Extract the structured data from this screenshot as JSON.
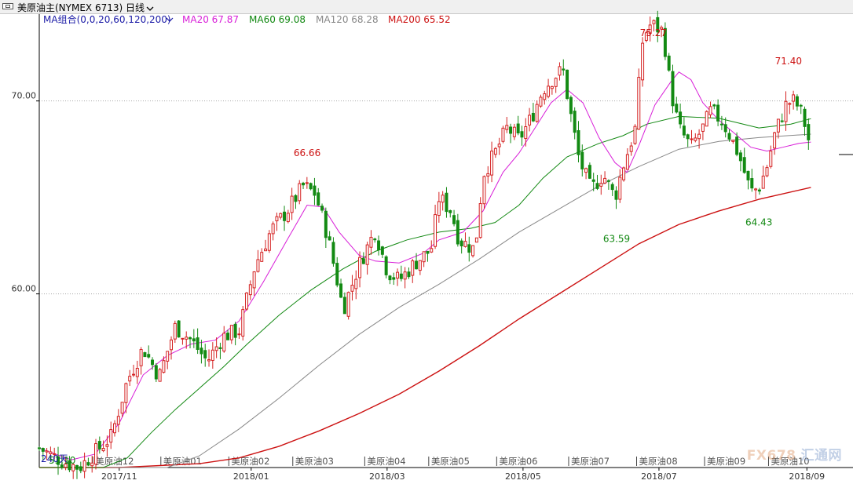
{
  "window": {
    "title": "美原油主(NYMEX 6713)",
    "period": "日线",
    "period_chevron": "chevron-down-icon",
    "title_icon": "window-icon"
  },
  "legend": {
    "ma_group": "MA组合(0,0,20,60,120,200)",
    "items": [
      {
        "label": "MA20 67.87",
        "color": "#d81ed8"
      },
      {
        "label": "MA60 69.08",
        "color": "#118811"
      },
      {
        "label": "MA120 68.28",
        "color": "#888888"
      },
      {
        "label": "MA200 65.52",
        "color": "#cc1111"
      }
    ]
  },
  "watermark": {
    "text": "FX678",
    "cn": "汇通网"
  },
  "chart_data": {
    "type": "line",
    "kind": "candlestick",
    "ylim": [
      51.0,
      74.5
    ],
    "yticks": [
      60.0,
      70.0
    ],
    "ytick_labels": [
      "60.00",
      "70.00"
    ],
    "grid": "dotted-horizontal",
    "x_labels": [
      "2017/11",
      "2018/01",
      "2018/03",
      "2018/05",
      "2018/07",
      "2018/09"
    ],
    "x_label_pos": [
      0.1,
      0.265,
      0.435,
      0.605,
      0.775,
      0.96
    ],
    "contract_marks": [
      "美原油12",
      "美原油01",
      "美原油02",
      "美原油03",
      "美原油04",
      "美原油05",
      "美原油06",
      "美原油07",
      "美原油08",
      "美原油09",
      "美原油10"
    ],
    "contract_pos": [
      0.07,
      0.155,
      0.24,
      0.32,
      0.41,
      0.49,
      0.575,
      0.665,
      0.75,
      0.835,
      0.915
    ],
    "overlay_labels": [
      "240天",
      "53.10"
    ],
    "annotations": [
      {
        "text": "66.66",
        "x": 0.335,
        "y": 66.66,
        "color": "#cc1111",
        "pos": "above"
      },
      {
        "text": "75.27",
        "x": 0.768,
        "y": 75.27,
        "color": "#cc1111",
        "pos": "above"
      },
      {
        "text": "71.40",
        "x": 0.937,
        "y": 71.4,
        "color": "#cc1111",
        "pos": "above"
      },
      {
        "text": "63.59",
        "x": 0.722,
        "y": 63.59,
        "color": "#118811",
        "pos": "below"
      },
      {
        "text": "64.43",
        "x": 0.9,
        "y": 64.43,
        "color": "#118811",
        "pos": "below"
      }
    ],
    "close_anchors": [
      [
        0.0,
        52.0
      ],
      [
        0.03,
        51.3
      ],
      [
        0.05,
        51.0
      ],
      [
        0.07,
        51.8
      ],
      [
        0.09,
        52.6
      ],
      [
        0.11,
        55.5
      ],
      [
        0.13,
        57.2
      ],
      [
        0.15,
        55.7
      ],
      [
        0.17,
        58.3
      ],
      [
        0.19,
        57.6
      ],
      [
        0.21,
        56.5
      ],
      [
        0.23,
        57.8
      ],
      [
        0.25,
        58.1
      ],
      [
        0.27,
        61.5
      ],
      [
        0.29,
        63.3
      ],
      [
        0.31,
        64.3
      ],
      [
        0.33,
        65.6
      ],
      [
        0.345,
        65.2
      ],
      [
        0.36,
        63.1
      ],
      [
        0.37,
        61.2
      ],
      [
        0.38,
        59.2
      ],
      [
        0.4,
        61.5
      ],
      [
        0.42,
        63.3
      ],
      [
        0.435,
        61.2
      ],
      [
        0.45,
        60.7
      ],
      [
        0.47,
        61.6
      ],
      [
        0.49,
        62.3
      ],
      [
        0.5,
        65.0
      ],
      [
        0.515,
        64.3
      ],
      [
        0.525,
        62.8
      ],
      [
        0.545,
        62.3
      ],
      [
        0.555,
        66.2
      ],
      [
        0.57,
        67.3
      ],
      [
        0.585,
        68.6
      ],
      [
        0.6,
        68.0
      ],
      [
        0.615,
        69.1
      ],
      [
        0.63,
        70.6
      ],
      [
        0.645,
        71.3
      ],
      [
        0.655,
        71.6
      ],
      [
        0.665,
        69.2
      ],
      [
        0.675,
        67.0
      ],
      [
        0.69,
        65.4
      ],
      [
        0.705,
        66.2
      ],
      [
        0.72,
        65.0
      ],
      [
        0.73,
        66.6
      ],
      [
        0.745,
        68.5
      ],
      [
        0.755,
        73.3
      ],
      [
        0.765,
        74.0
      ],
      [
        0.78,
        73.6
      ],
      [
        0.79,
        70.5
      ],
      [
        0.8,
        68.6
      ],
      [
        0.815,
        67.6
      ],
      [
        0.83,
        68.6
      ],
      [
        0.84,
        69.5
      ],
      [
        0.855,
        68.9
      ],
      [
        0.865,
        68.1
      ],
      [
        0.875,
        67.2
      ],
      [
        0.885,
        65.9
      ],
      [
        0.89,
        65.3
      ],
      [
        0.9,
        65.5
      ],
      [
        0.91,
        66.6
      ],
      [
        0.92,
        68.3
      ],
      [
        0.935,
        69.9
      ],
      [
        0.945,
        70.0
      ],
      [
        0.955,
        69.2
      ],
      [
        0.962,
        68.0
      ]
    ],
    "ma20": [
      [
        0.0,
        52.0
      ],
      [
        0.04,
        51.4
      ],
      [
        0.07,
        51.7
      ],
      [
        0.1,
        53.3
      ],
      [
        0.13,
        55.8
      ],
      [
        0.16,
        56.8
      ],
      [
        0.19,
        57.4
      ],
      [
        0.22,
        57.6
      ],
      [
        0.25,
        58.6
      ],
      [
        0.28,
        60.6
      ],
      [
        0.31,
        62.8
      ],
      [
        0.335,
        64.6
      ],
      [
        0.355,
        64.5
      ],
      [
        0.375,
        63.2
      ],
      [
        0.4,
        62.0
      ],
      [
        0.42,
        61.7
      ],
      [
        0.45,
        61.6
      ],
      [
        0.48,
        62.1
      ],
      [
        0.5,
        62.8
      ],
      [
        0.53,
        63.2
      ],
      [
        0.555,
        64.3
      ],
      [
        0.58,
        66.3
      ],
      [
        0.6,
        67.3
      ],
      [
        0.62,
        68.6
      ],
      [
        0.64,
        69.9
      ],
      [
        0.66,
        70.6
      ],
      [
        0.68,
        69.9
      ],
      [
        0.7,
        68.1
      ],
      [
        0.72,
        66.8
      ],
      [
        0.735,
        66.3
      ],
      [
        0.75,
        67.7
      ],
      [
        0.77,
        69.8
      ],
      [
        0.79,
        71.0
      ],
      [
        0.8,
        71.5
      ],
      [
        0.815,
        71.1
      ],
      [
        0.83,
        69.9
      ],
      [
        0.85,
        69.0
      ],
      [
        0.87,
        68.3
      ],
      [
        0.89,
        67.6
      ],
      [
        0.91,
        67.4
      ],
      [
        0.93,
        67.6
      ],
      [
        0.95,
        67.8
      ],
      [
        0.965,
        67.87
      ]
    ],
    "ma60": [
      [
        0.0,
        51.0
      ],
      [
        0.05,
        51.0
      ],
      [
        0.08,
        51.0
      ],
      [
        0.11,
        51.5
      ],
      [
        0.14,
        52.8
      ],
      [
        0.17,
        54.0
      ],
      [
        0.2,
        55.1
      ],
      [
        0.23,
        56.2
      ],
      [
        0.26,
        57.4
      ],
      [
        0.3,
        58.9
      ],
      [
        0.34,
        60.2
      ],
      [
        0.38,
        61.3
      ],
      [
        0.42,
        62.2
      ],
      [
        0.46,
        62.8
      ],
      [
        0.5,
        63.2
      ],
      [
        0.54,
        63.4
      ],
      [
        0.57,
        63.7
      ],
      [
        0.6,
        64.6
      ],
      [
        0.63,
        66.0
      ],
      [
        0.66,
        67.1
      ],
      [
        0.7,
        67.8
      ],
      [
        0.73,
        68.2
      ],
      [
        0.76,
        68.8
      ],
      [
        0.8,
        69.2
      ],
      [
        0.85,
        69.1
      ],
      [
        0.9,
        68.6
      ],
      [
        0.94,
        68.8
      ],
      [
        0.965,
        69.08
      ]
    ],
    "ma120": [
      [
        0.0,
        51.0
      ],
      [
        0.1,
        51.0
      ],
      [
        0.16,
        51.0
      ],
      [
        0.2,
        51.6
      ],
      [
        0.25,
        53.0
      ],
      [
        0.3,
        54.6
      ],
      [
        0.35,
        56.3
      ],
      [
        0.4,
        57.9
      ],
      [
        0.45,
        59.3
      ],
      [
        0.5,
        60.5
      ],
      [
        0.55,
        61.8
      ],
      [
        0.6,
        63.2
      ],
      [
        0.65,
        64.4
      ],
      [
        0.7,
        65.6
      ],
      [
        0.75,
        66.6
      ],
      [
        0.8,
        67.5
      ],
      [
        0.85,
        67.9
      ],
      [
        0.9,
        68.1
      ],
      [
        0.965,
        68.28
      ]
    ],
    "ma200": [
      [
        0.0,
        51.0
      ],
      [
        0.1,
        51.0
      ],
      [
        0.2,
        51.2
      ],
      [
        0.25,
        51.5
      ],
      [
        0.3,
        52.1
      ],
      [
        0.35,
        52.9
      ],
      [
        0.4,
        53.8
      ],
      [
        0.45,
        54.8
      ],
      [
        0.5,
        56.0
      ],
      [
        0.55,
        57.3
      ],
      [
        0.6,
        58.7
      ],
      [
        0.65,
        60.0
      ],
      [
        0.7,
        61.3
      ],
      [
        0.75,
        62.6
      ],
      [
        0.8,
        63.6
      ],
      [
        0.85,
        64.3
      ],
      [
        0.9,
        64.9
      ],
      [
        0.965,
        65.52
      ]
    ]
  }
}
